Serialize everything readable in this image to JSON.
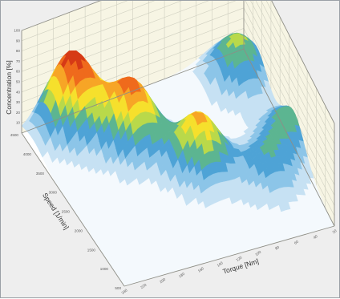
{
  "chart_data": {
    "type": "surface-3d",
    "title": "",
    "zlabel": "Concentration [%]",
    "xlabel": "Torque [Nm]",
    "ylabel": "Speed [1/min]",
    "z_ticks": [
      "100",
      "90",
      "80",
      "70",
      "60",
      "50",
      "40",
      "30",
      "20",
      "10"
    ],
    "speed_ticks": [
      "4500",
      "4000",
      "3500",
      "3000",
      "2500",
      "2000",
      "1500",
      "1000",
      "500"
    ],
    "torque_ticks": [
      "240",
      "220",
      "200",
      "180",
      "160",
      "140",
      "120",
      "100",
      "80",
      "60",
      "40",
      "20"
    ],
    "zlim": [
      0,
      100
    ],
    "speed_range": [
      500,
      4500
    ],
    "torque_range": [
      20,
      240
    ],
    "grid": true,
    "colors": {
      "wall": "#f7f5e4",
      "grid": "#cfcfc0",
      "frame": "#8e8e86",
      "colormap": [
        "#f4f9fd",
        "#c6e1f3",
        "#8cc5e8",
        "#4ea3d6",
        "#5cb591",
        "#b9d94a",
        "#f6e02c",
        "#f7a526",
        "#ef6a1c",
        "#d63a16"
      ]
    },
    "peaks": [
      {
        "torque": 200,
        "speed": 4100,
        "concentration": 78
      },
      {
        "torque": 160,
        "speed": 3300,
        "concentration": 67
      },
      {
        "torque": 115,
        "speed": 2350,
        "concentration": 58
      },
      {
        "torque": 40,
        "speed": 3900,
        "concentration": 44
      },
      {
        "torque": 25,
        "speed": 2300,
        "concentration": 34
      },
      {
        "torque": 60,
        "speed": 1700,
        "concentration": 30
      }
    ]
  }
}
